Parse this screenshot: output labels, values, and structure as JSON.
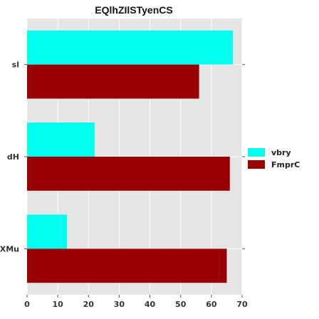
{
  "chart_data": {
    "type": "bar",
    "orientation": "horizontal",
    "title": "EQlhZIlSTyenCS",
    "xlabel": "",
    "ylabel": "",
    "categories": [
      "sl",
      "dH",
      "ZXMu"
    ],
    "series": [
      {
        "name": "vbry",
        "values": [
          67,
          22,
          13
        ],
        "color": "#00ffee"
      },
      {
        "name": "FmprC",
        "values": [
          56,
          66,
          65
        ],
        "color": "#990000"
      }
    ],
    "xlim": [
      0,
      70
    ],
    "xticks": [
      0,
      10,
      20,
      30,
      40,
      50,
      60,
      70
    ],
    "grid": true,
    "legend_position": "right",
    "colors": {
      "plot_background": "#e5e5e5",
      "grid": "#ffffff"
    }
  }
}
